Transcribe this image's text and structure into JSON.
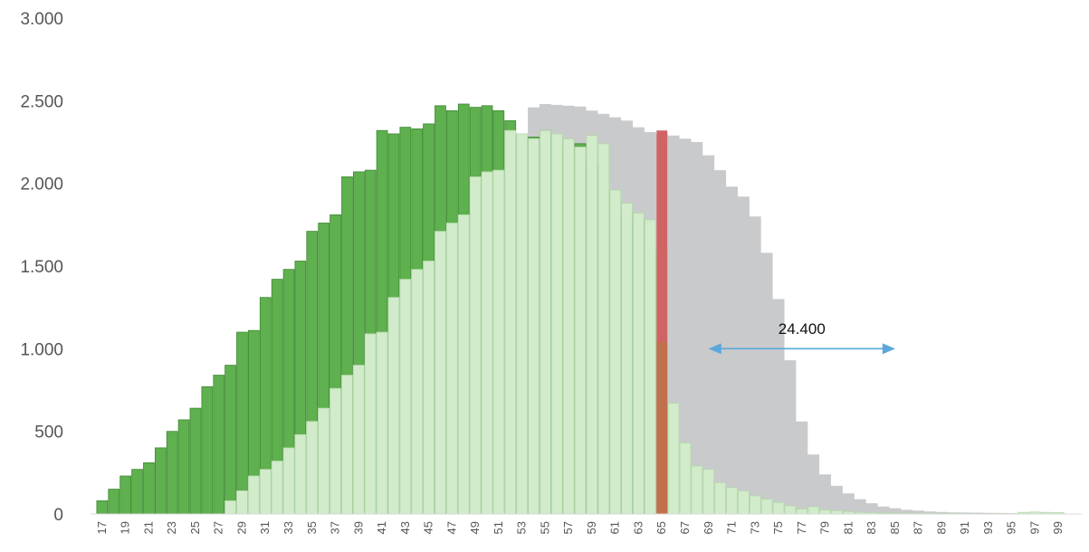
{
  "chart_data": {
    "type": "bar",
    "title": "",
    "xlabel": "",
    "ylabel": "",
    "ylim": [
      0,
      3000
    ],
    "yticks": [
      0,
      500,
      1000,
      1500,
      2000,
      2500,
      3000
    ],
    "ytick_labels": [
      "0",
      "500",
      "1.000",
      "1.500",
      "2.000",
      "2.500",
      "3.000"
    ],
    "xlim": [
      16,
      101
    ],
    "x_tick_labels": [
      "17",
      "19",
      "21",
      "23",
      "25",
      "27",
      "29",
      "31",
      "33",
      "35",
      "37",
      "39",
      "41",
      "43",
      "45",
      "47",
      "49",
      "51",
      "53",
      "55",
      "57",
      "59",
      "61",
      "63",
      "65",
      "67",
      "69",
      "71",
      "73",
      "75",
      "77",
      "79",
      "81",
      "83",
      "85",
      "87",
      "89",
      "91",
      "93",
      "95",
      "97",
      "99"
    ],
    "grid": false,
    "legend": "none",
    "series": [
      {
        "kind": "area",
        "color": "#c9cacc",
        "x": [
          54,
          55,
          56,
          57,
          58,
          59,
          60,
          61,
          62,
          63,
          64,
          65,
          66,
          67,
          68,
          69,
          70,
          71,
          72,
          73,
          74,
          75,
          76,
          77,
          78,
          79,
          80,
          81,
          82,
          83,
          84,
          85,
          86,
          87,
          88,
          89,
          90,
          91,
          92,
          93,
          94,
          95,
          96,
          97,
          98,
          99,
          100
        ],
        "values": [
          2460,
          2480,
          2475,
          2470,
          2465,
          2440,
          2420,
          2400,
          2380,
          2340,
          2310,
          2300,
          2290,
          2270,
          2250,
          2170,
          2080,
          1980,
          1920,
          1800,
          1580,
          1300,
          930,
          560,
          360,
          240,
          170,
          125,
          90,
          65,
          45,
          35,
          25,
          20,
          15,
          12,
          10,
          9,
          8,
          7,
          6,
          5,
          4,
          3,
          2,
          1,
          0
        ]
      },
      {
        "kind": "bar",
        "color": "#5fb04e",
        "x": [
          17,
          18,
          19,
          20,
          21,
          22,
          23,
          24,
          25,
          26,
          27,
          28,
          29,
          30,
          31,
          32,
          33,
          34,
          35,
          36,
          37,
          38,
          39,
          40,
          41,
          42,
          43,
          44,
          45,
          46,
          47,
          48,
          49,
          50,
          51,
          52,
          53,
          54,
          55,
          56,
          57,
          58,
          59,
          60,
          61,
          62,
          63,
          64
        ],
        "values": [
          80,
          150,
          230,
          270,
          310,
          400,
          500,
          570,
          640,
          770,
          840,
          900,
          1100,
          1110,
          1310,
          1420,
          1480,
          1530,
          1710,
          1760,
          1810,
          2040,
          2070,
          2080,
          2320,
          2300,
          2340,
          2330,
          2360,
          2470,
          2440,
          2480,
          2460,
          2470,
          2440,
          2380,
          2300,
          2280,
          2320,
          2270,
          2220,
          2240,
          2120,
          1950,
          1880,
          1820,
          1780,
          1600
        ]
      },
      {
        "kind": "bar",
        "color": "#d1ebcb",
        "x": [
          28,
          29,
          30,
          31,
          32,
          33,
          34,
          35,
          36,
          37,
          38,
          39,
          40,
          41,
          42,
          43,
          44,
          45,
          46,
          47,
          48,
          49,
          50,
          51,
          52,
          53,
          54,
          55,
          56,
          57,
          58,
          59,
          60,
          61,
          62,
          63,
          64,
          65,
          66,
          67,
          68,
          69,
          70,
          71,
          72,
          73,
          74,
          75,
          76,
          77,
          78,
          79,
          80,
          81,
          82,
          83,
          84,
          85,
          86,
          87,
          88,
          89,
          90,
          91,
          92,
          93,
          94,
          95,
          96,
          97,
          98,
          99
        ],
        "values": [
          80,
          140,
          230,
          270,
          320,
          400,
          480,
          560,
          640,
          760,
          840,
          900,
          1090,
          1100,
          1310,
          1420,
          1480,
          1530,
          1710,
          1760,
          1810,
          2040,
          2070,
          2080,
          2320,
          2300,
          2270,
          2320,
          2300,
          2270,
          2220,
          2290,
          2240,
          1960,
          1880,
          1820,
          1780,
          1600,
          670,
          430,
          290,
          270,
          190,
          160,
          140,
          110,
          90,
          70,
          50,
          30,
          45,
          25,
          20,
          15,
          10,
          8,
          6,
          5,
          5,
          4,
          3,
          3,
          3,
          2,
          2,
          2,
          2,
          2,
          10,
          12,
          10,
          8
        ]
      },
      {
        "kind": "bar",
        "color": "#d06464",
        "x": [
          65
        ],
        "values": [
          2320
        ]
      },
      {
        "kind": "bar",
        "color": "#c1704e",
        "x": [
          65
        ],
        "values": [
          1040
        ]
      }
    ],
    "annotations": [
      {
        "text": "24.400",
        "arrow_from_x": 69,
        "arrow_to_x": 85,
        "arrow_y": 1000,
        "text_y": 1090,
        "color": "#5aa8dc"
      }
    ]
  }
}
